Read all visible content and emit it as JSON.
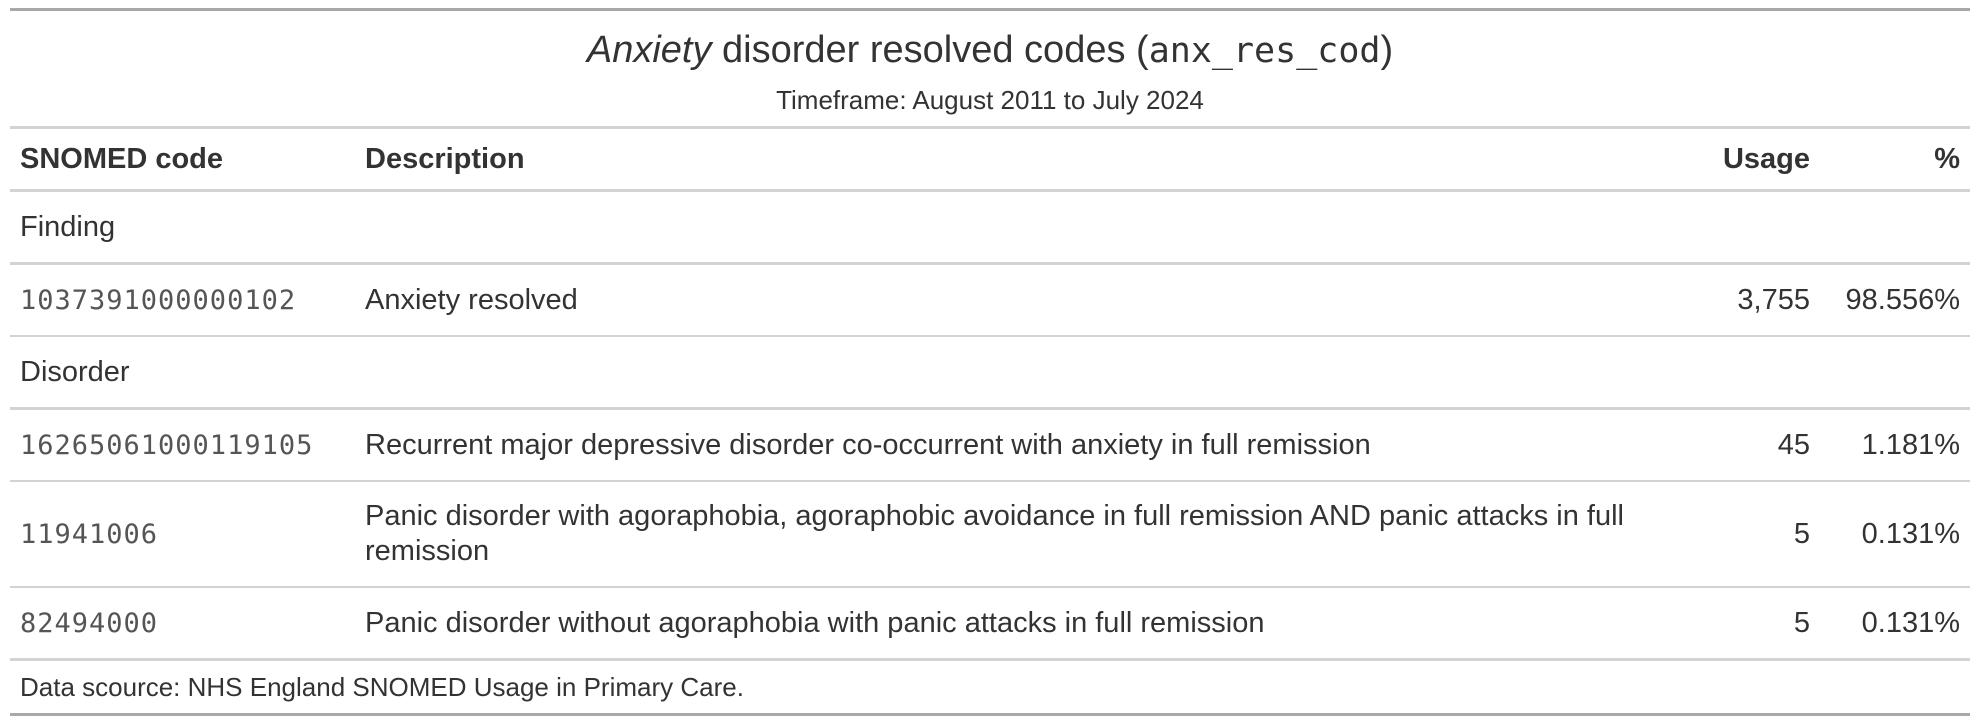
{
  "title": {
    "italic": "Anxiety",
    "middle": " disorder resolved codes (",
    "code": "anx_res_cod",
    "end": ")"
  },
  "subtitle": "Timeframe: August 2011 to July 2024",
  "columns": [
    "SNOMED code",
    "Description",
    "Usage",
    "%"
  ],
  "groups": [
    {
      "name": "Finding",
      "rows": [
        {
          "code": "1037391000000102",
          "description": "Anxiety resolved",
          "usage": "3,755",
          "percent": "98.556%"
        }
      ]
    },
    {
      "name": "Disorder",
      "rows": [
        {
          "code": "16265061000119105",
          "description": "Recurrent major depressive disorder co-occurrent with anxiety in full remission",
          "usage": "45",
          "percent": "1.181%"
        },
        {
          "code": "11941006",
          "description": "Panic disorder with agoraphobia, agoraphobic avoidance in full remission AND panic attacks in full remission",
          "usage": "5",
          "percent": "0.131%"
        },
        {
          "code": "82494000",
          "description": "Panic disorder without agoraphobia with panic attacks in full remission",
          "usage": "5",
          "percent": "0.131%"
        }
      ]
    }
  ],
  "footer": "Data scource: NHS England SNOMED Usage in Primary Care."
}
